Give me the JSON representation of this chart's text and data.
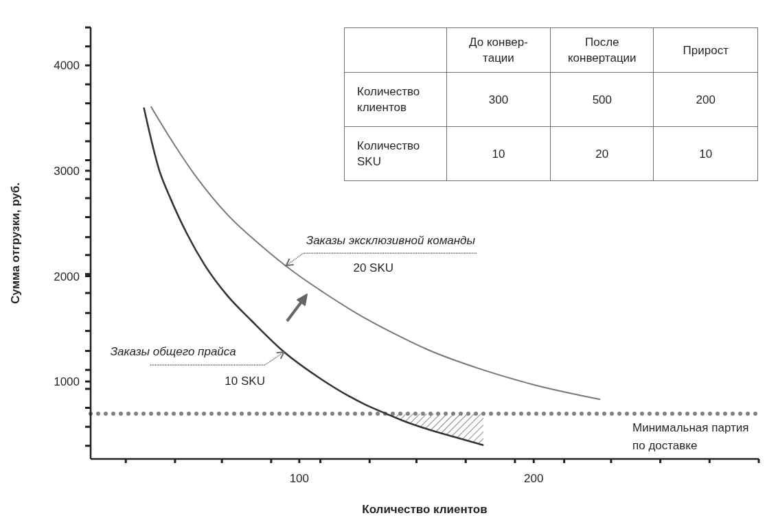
{
  "chart_data": [
    {
      "type": "line",
      "xlabel": "Количество клиентов",
      "ylabel": "Сумма отгрузки, руб.",
      "xlim": [
        11,
        296
      ],
      "ylim": [
        265,
        4360
      ],
      "xticks": [
        {
          "value": 26,
          "label": null
        },
        {
          "value": 47,
          "label": null
        },
        {
          "value": 67,
          "label": null
        },
        {
          "value": 88,
          "label": null
        },
        100,
        {
          "value": 109,
          "label": null
        },
        {
          "value": 130,
          "label": null
        },
        {
          "value": 150,
          "label": null
        },
        {
          "value": 171,
          "label": null
        },
        {
          "value": 192,
          "label": null
        },
        200,
        {
          "value": 213,
          "label": null
        },
        {
          "value": 233,
          "label": null
        },
        {
          "value": 254,
          "label": null
        },
        {
          "value": 275,
          "label": null
        },
        {
          "value": 296,
          "label": null
        }
      ],
      "yticks": [
        {
          "value": 390,
          "label": null
        },
        {
          "value": 570,
          "label": null
        },
        {
          "value": 750,
          "label": null
        },
        {
          "value": 930,
          "label": null
        },
        1000,
        {
          "value": 1110,
          "label": null
        },
        {
          "value": 1290,
          "label": null
        },
        {
          "value": 1480,
          "label": null
        },
        {
          "value": 1650,
          "label": null
        },
        {
          "value": 1840,
          "label": null
        },
        2000,
        {
          "value": 2020,
          "label": null
        },
        {
          "value": 2200,
          "label": null
        },
        {
          "value": 2370,
          "label": null
        },
        {
          "value": 2560,
          "label": null
        },
        {
          "value": 2740,
          "label": null
        },
        {
          "value": 2920,
          "label": null
        },
        3000,
        {
          "value": 3100,
          "label": null
        },
        {
          "value": 3280,
          "label": null
        },
        {
          "value": 3450,
          "label": null
        },
        {
          "value": 3640,
          "label": null
        },
        {
          "value": 3820,
          "label": null
        },
        4000,
        {
          "value": 4180,
          "label": null
        },
        {
          "value": 4360,
          "label": null
        }
      ],
      "series": [
        {
          "type": "line",
          "color": "#333333",
          "x": [
            33.7,
            40.2,
            45.2,
            51.9,
            59.8,
            69.5,
            79.5,
            93.5,
            108.8,
            128.2,
            137,
            144,
            155.1,
            166,
            178.6
          ],
          "values": [
            3600,
            3010,
            2730,
            2410,
            2100,
            1810,
            1580,
            1280,
            1030,
            780,
            695,
            630,
            545,
            475,
            395
          ],
          "lower": [
            null,
            null,
            null,
            null,
            null,
            null,
            null,
            null,
            null,
            null,
            695,
            630,
            545,
            475,
            395
          ],
          "upper": [
            null,
            null,
            null,
            null,
            null,
            null,
            null,
            null,
            null,
            null,
            695,
            695,
            695,
            695,
            695
          ]
        },
        {
          "type": "line",
          "color": "#777777",
          "x": [
            36.7,
            45.2,
            54.8,
            69.5,
            84.2,
            97,
            110,
            125,
            140,
            155,
            177,
            199,
            228.4
          ],
          "values": [
            3610,
            3300,
            2980,
            2580,
            2280,
            2050,
            1850,
            1640,
            1460,
            1300,
            1120,
            975,
            830
          ]
        }
      ],
      "ref_lines": [
        {
          "axis": "y",
          "value": 695,
          "label": "Минимальная партия по доставке",
          "color": "#808080",
          "line_style": "dotted"
        }
      ],
      "annotations": [
        {
          "text": "Заказы эксклюзивной команды",
          "x": 94.4,
          "y": 2100
        },
        "20 SKU",
        {
          "text": "Заказы общего прайса",
          "x": 93.5,
          "y": 1280
        },
        "10 SKU"
      ]
    },
    {
      "type": "other",
      "categories": [
        "Количество клиентов",
        "Количество SKU"
      ],
      "data_labels": true,
      "series": [
        {
          "name": "До конвер-\nтации",
          "values": [
            300,
            10
          ]
        },
        {
          "name": "После конвертации",
          "values": [
            500,
            20
          ]
        },
        {
          "name": "Прирост",
          "values": [
            200,
            10
          ]
        }
      ]
    }
  ]
}
